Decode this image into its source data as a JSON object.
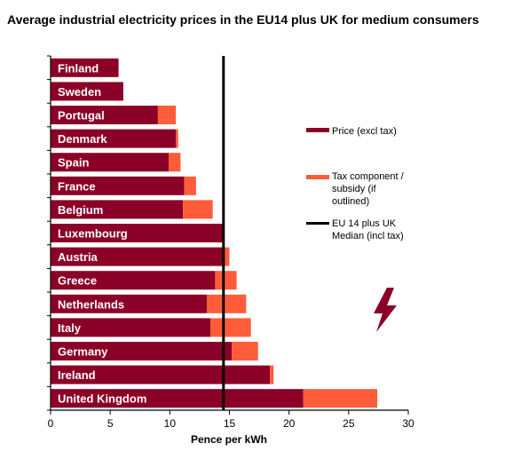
{
  "chart_data": {
    "type": "bar",
    "orientation": "horizontal",
    "stacked": true,
    "title": "Average industrial electricity prices in the EU14 plus UK for medium consumers",
    "xlabel": "Pence per kWh",
    "ylabel": "",
    "xlim": [
      0,
      30
    ],
    "xticks": [
      0,
      5,
      10,
      15,
      20,
      25,
      30
    ],
    "categories": [
      "Finland",
      "Sweden",
      "Portugal",
      "Denmark",
      "Spain",
      "France",
      "Belgium",
      "Luxembourg",
      "Austria",
      "Greece",
      "Netherlands",
      "Italy",
      "Germany",
      "Ireland",
      "United Kingdom"
    ],
    "series": [
      {
        "name": "Price (excl tax)",
        "color": "#8b0026",
        "values": [
          5.7,
          6.1,
          9.0,
          10.5,
          9.9,
          11.2,
          11.1,
          14.5,
          14.5,
          13.8,
          13.1,
          13.4,
          15.2,
          18.4,
          21.2
        ]
      },
      {
        "name": "Tax component / subsidy (if outlined)",
        "color": "#ff5c3a",
        "values": [
          0.0,
          0.0,
          1.5,
          0.2,
          1.0,
          1.0,
          2.5,
          0.0,
          0.5,
          1.8,
          3.3,
          3.4,
          2.2,
          0.3,
          6.2
        ]
      }
    ],
    "reference_line": {
      "name": "EU 14 plus UK Median (incl tax)",
      "value": 14.5,
      "color": "#000000"
    },
    "legend": {
      "placement": "right",
      "entries": [
        {
          "line1": "Price (excl tax)",
          "line2": "",
          "line3": ""
        },
        {
          "line1": "Tax component /",
          "line2": "subsidy (if",
          "line3": "outlined)"
        },
        {
          "line1": "EU 14 plus UK",
          "line2": "Median (incl tax)",
          "line3": ""
        }
      ]
    },
    "grid": false,
    "decoration": "lightning-bolt-icon"
  }
}
